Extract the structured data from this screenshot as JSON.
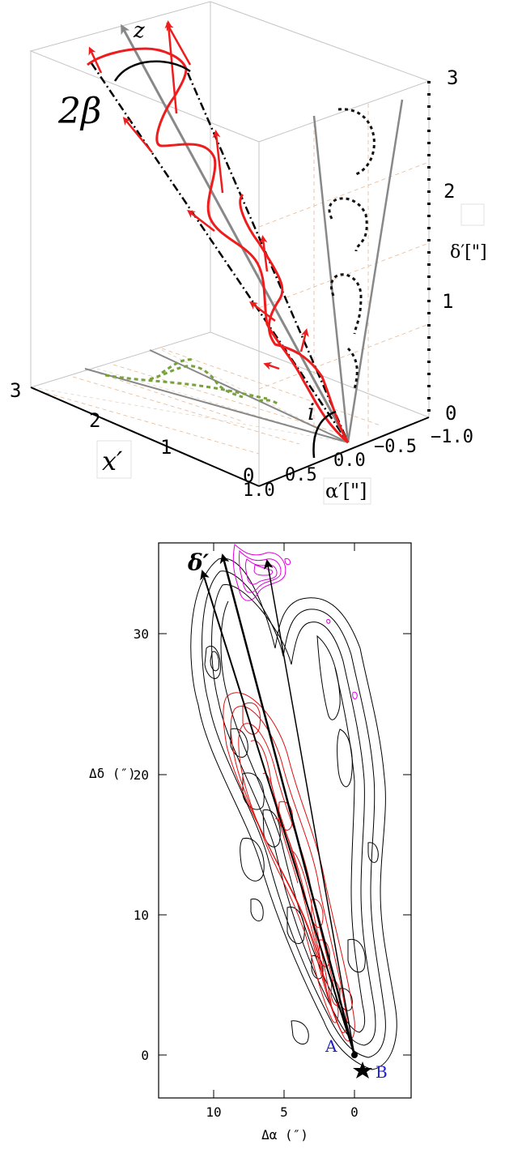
{
  "top_panel": {
    "labels": {
      "z_axis": "z",
      "beta": "2β",
      "inclination": "i",
      "x_axis": "x′",
      "alpha_axis": "α′[\"]",
      "delta_axis": "δ′[\"]"
    },
    "x_ticks": [
      "3",
      "2",
      "1",
      "0"
    ],
    "alpha_ticks": [
      "1.0",
      "0.5",
      "0.0",
      "−0.5",
      "−1.0"
    ],
    "delta_ticks": [
      "3",
      "2",
      "1",
      "0"
    ],
    "colors": {
      "helix": "#ee1c1c",
      "axis_gray": "#888888",
      "projection_green": "#77a13b",
      "grid_dash": "#e6b08a",
      "box": "#bdbdbd"
    }
  },
  "bottom_panel": {
    "labels": {
      "delta_prime": "δ′",
      "ylabel": "Δδ (″)",
      "xlabel": "Δα (″)",
      "source_A": "A",
      "source_B": "B"
    },
    "x_ticks": [
      "10",
      "5",
      "0"
    ],
    "y_ticks": [
      "30",
      "20",
      "10",
      "0"
    ],
    "colors": {
      "black_contours": "#000000",
      "red_contours": "#dd1111",
      "magenta_contours": "#dd00dd",
      "source_labels": "#1f1fd0"
    }
  }
}
